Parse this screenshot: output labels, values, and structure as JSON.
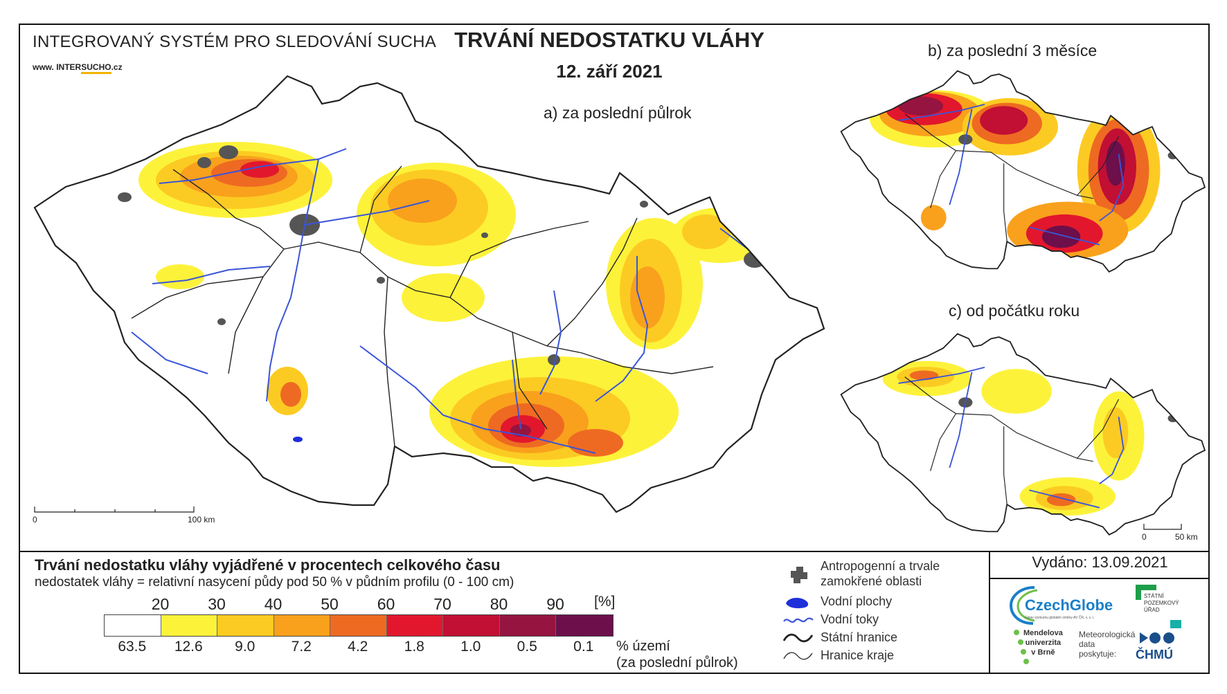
{
  "header": {
    "system_name": "INTEGROVANÝ SYSTÉM PRO SLEDOVÁNÍ SUCHA",
    "url_prefix": "www. INTER",
    "url_highlight": "SUCHO",
    "url_suffix": ".cz",
    "title": "TRVÁNÍ NEDOSTATKU VLÁHY",
    "date": "12. září 2021"
  },
  "panels": {
    "a": {
      "label": "a) za poslední půlrok"
    },
    "b": {
      "label": "b) za poslední 3 měsíce"
    },
    "c": {
      "label": "c) od počátku roku"
    }
  },
  "scalebars": {
    "main": {
      "start": "0",
      "end": "100 km"
    },
    "small": {
      "start": "0",
      "end": "50 km"
    }
  },
  "legend": {
    "title": "Trvání nedostatku vláhy vyjádřené v procentech celkového času",
    "subtitle": "nedostatek vláhy = relativní nasycení půdy pod 50 % v půdním profilu (0 - 100 cm)",
    "unit": "[%]",
    "area_label_1": "% území",
    "area_label_2": "(za poslední půlrok)",
    "thresholds": [
      "20",
      "30",
      "40",
      "50",
      "60",
      "70",
      "80",
      "90"
    ],
    "classes": [
      {
        "color": "#ffffff",
        "area_pct": "63.5"
      },
      {
        "color": "#fdf23a",
        "area_pct": "12.6"
      },
      {
        "color": "#fccb23",
        "area_pct": "9.0"
      },
      {
        "color": "#f9a11c",
        "area_pct": "7.2"
      },
      {
        "color": "#ee6a22",
        "area_pct": "4.2"
      },
      {
        "color": "#e2172d",
        "area_pct": "1.8"
      },
      {
        "color": "#c20f34",
        "area_pct": "1.0"
      },
      {
        "color": "#961440",
        "area_pct": "0.5"
      },
      {
        "color": "#6c0f4b",
        "area_pct": "0.1"
      }
    ]
  },
  "symbols": {
    "anthropogenic_1": "Antropogenní a trvale",
    "anthropogenic_2": "zamokřené oblasti",
    "water_bodies": "Vodní plochy",
    "rivers": "Vodní toky",
    "state_border": "Státní hranice",
    "region_border": "Hranice kraje"
  },
  "issued": "Vydáno: 13.09.2021",
  "logos": {
    "czechglobe": "CzechGlobe",
    "czechglobe_sub": "Ústav výzkumu globální změny AV ČR, v. v. i.",
    "spu_1": "STÁTNÍ",
    "spu_2": "POZEMKOVÝ",
    "spu_3": "ÚŘAD",
    "mendel_1": "Mendelova",
    "mendel_2": "univerzita",
    "mendel_3": "v Brně",
    "met_1": "Meteorologická",
    "met_2": "data",
    "met_3": "poskytuje:",
    "chmu": "ČHMÚ"
  },
  "colors": {
    "river": "#3a55d8",
    "urban": "#555555",
    "border": "#222222"
  }
}
